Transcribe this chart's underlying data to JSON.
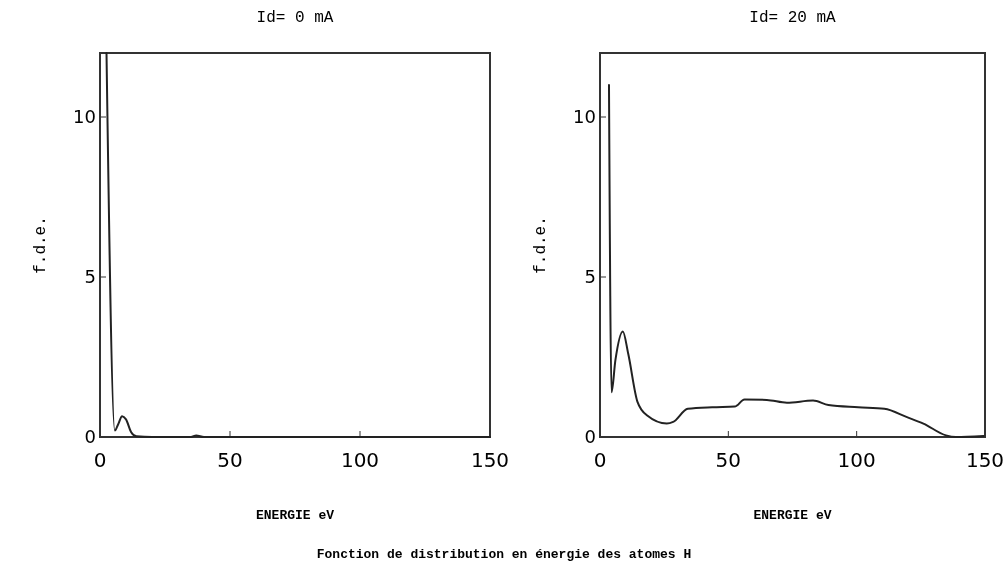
{
  "chart_data": [
    {
      "type": "line",
      "title": "Id= 0 mA",
      "xlabel": "ENERGIE eV",
      "ylabel": "f.d.e.",
      "xlim": [
        0,
        150
      ],
      "ylim": [
        0,
        12
      ],
      "xticks": [
        0,
        50,
        100,
        150
      ],
      "yticks": [
        0,
        5,
        10
      ],
      "marker": "none",
      "line_style": "solid",
      "series": [
        {
          "color": "#222222",
          "x": [
            2.5,
            5.7,
            7,
            8.5,
            10,
            12,
            14,
            20,
            35,
            37,
            40,
            150
          ],
          "values": [
            12,
            0.2,
            0.4,
            0.65,
            0.55,
            0.15,
            0.02,
            0,
            0,
            0.05,
            0,
            0
          ]
        }
      ]
    },
    {
      "type": "line",
      "title": "Id= 20 mA",
      "xlabel": "ENERGIE eV",
      "ylabel": "f.d.e.",
      "xlim": [
        0,
        150
      ],
      "ylim": [
        0,
        12
      ],
      "xticks": [
        0,
        50,
        100,
        150
      ],
      "yticks": [
        0,
        5,
        10
      ],
      "marker": "none",
      "line_style": "solid",
      "annotations": [
        "Fonction de distribution en énergie des atomes H"
      ],
      "series": [
        {
          "color": "#222222",
          "x": [
            3.5,
            4.5,
            6,
            8.9,
            11,
            14.6,
            18.4,
            26,
            28.5,
            34.2,
            43.7,
            52.5,
            56.3,
            65,
            72.8,
            83,
            89,
            100.6,
            110.8,
            119.6,
            126,
            134.8,
            138.6,
            149.4
          ],
          "values": [
            11,
            1.4,
            2.4,
            3.3,
            2.6,
            1.1,
            0.67,
            0.42,
            0.47,
            0.88,
            0.93,
            0.95,
            1.17,
            1.16,
            1.07,
            1.14,
            1.0,
            0.93,
            0.88,
            0.62,
            0.42,
            0.05,
            0,
            0.03
          ]
        }
      ]
    }
  ]
}
